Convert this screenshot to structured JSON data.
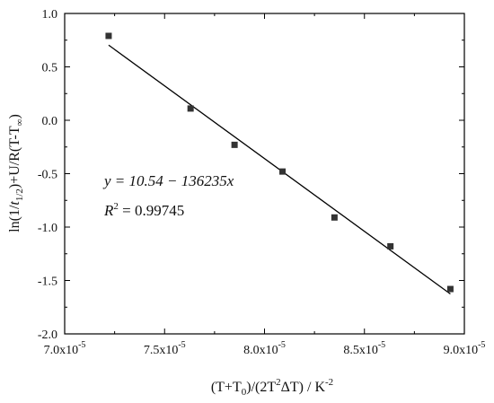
{
  "chart_data": {
    "type": "scatter",
    "xlabel_parts": {
      "a": "(T+T",
      "a_sub": "0",
      "b": ")/(2T",
      "b_sup": "2",
      "c": "ΔT) / K",
      "c_sup": "-2"
    },
    "ylabel_parts": {
      "a": "ln(1/",
      "b": "t",
      "b_sub": "1/2",
      "c": ")+U/R(T-T",
      "c_sub": "∞",
      "d": ")"
    },
    "xlim": [
      7e-05,
      9e-05
    ],
    "ylim": [
      -2.0,
      1.0
    ],
    "x_ticks": [
      7e-05,
      7.5e-05,
      8e-05,
      8.5e-05,
      9e-05
    ],
    "x_tick_labels": [
      {
        "mantissa": "7.0x10",
        "exp": "-5"
      },
      {
        "mantissa": "7.5x10",
        "exp": "-5"
      },
      {
        "mantissa": "8.0x10",
        "exp": "-5"
      },
      {
        "mantissa": "8.5x10",
        "exp": "-5"
      },
      {
        "mantissa": "9.0x10",
        "exp": "-5"
      }
    ],
    "y_ticks": [
      1.0,
      0.5,
      0.0,
      -0.5,
      -1.0,
      -1.5,
      -2.0
    ],
    "y_tick_labels": [
      "1.0",
      "0.5",
      "0.0",
      "-0.5",
      "-1.0",
      "-1.5",
      "-2.0"
    ],
    "points": {
      "x": [
        7.22e-05,
        7.63e-05,
        7.85e-05,
        8.09e-05,
        8.35e-05,
        8.63e-05,
        8.93e-05
      ],
      "y": [
        0.79,
        0.11,
        -0.23,
        -0.48,
        -0.91,
        -1.18,
        -1.58
      ]
    },
    "fit": {
      "intercept": 10.54,
      "slope": -136235,
      "x_range": [
        7.22e-05,
        8.93e-05
      ]
    },
    "annotations": {
      "equation": "y = 10.54 − 136235x",
      "r2_label": "R",
      "r2_sup": "2",
      "r2_value": " = 0.99745"
    },
    "grid": false,
    "legend": "none"
  }
}
